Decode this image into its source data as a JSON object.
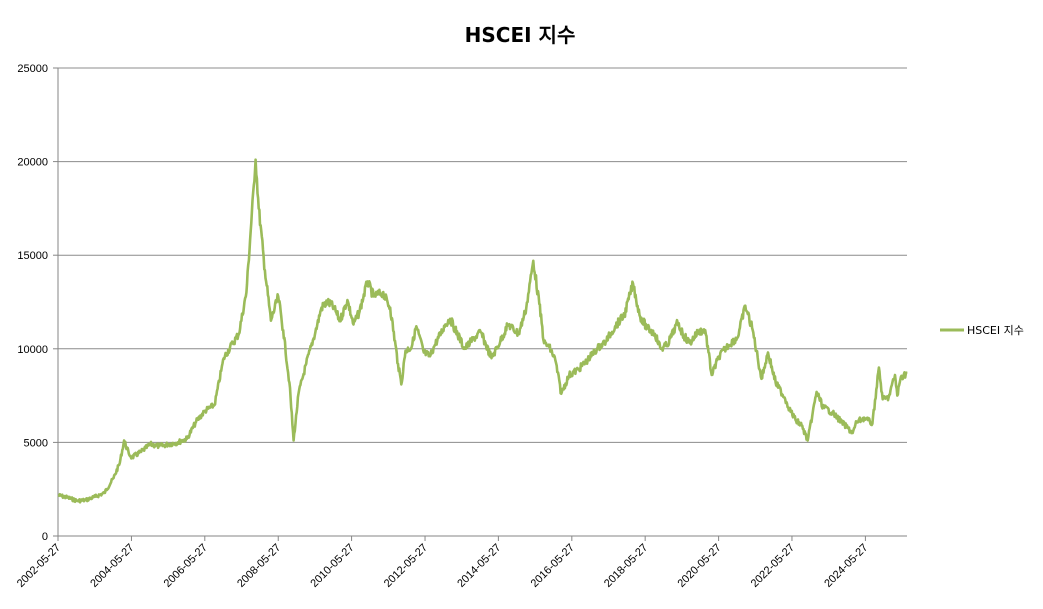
{
  "chart_data": {
    "type": "line",
    "title": "HSCEI 지수",
    "xlabel": "",
    "ylabel": "",
    "ylim": [
      0,
      25000
    ],
    "yticks": [
      0,
      5000,
      10000,
      15000,
      20000,
      25000
    ],
    "xticks": [
      "2002-05-27",
      "2004-05-27",
      "2006-05-27",
      "2008-05-27",
      "2010-05-27",
      "2012-05-27",
      "2014-05-27",
      "2016-05-27",
      "2018-05-27",
      "2020-05-27",
      "2022-05-27",
      "2024-05-27"
    ],
    "xlim": [
      "2002-05-27",
      "2025-07-15"
    ],
    "grid": "horizontal",
    "legend_position": "right",
    "colors": {
      "series": "#9BBB59",
      "grid": "#8C8C8C",
      "axis": "#868686"
    },
    "series": [
      {
        "name": "HSCEI 지수",
        "x": [
          "2002-05-27",
          "2002-09-01",
          "2002-12-01",
          "2003-03-01",
          "2003-06-01",
          "2003-09-01",
          "2003-12-01",
          "2004-02-01",
          "2004-03-15",
          "2004-05-01",
          "2004-06-01",
          "2004-09-01",
          "2004-12-01",
          "2005-03-01",
          "2005-06-01",
          "2005-09-01",
          "2005-12-01",
          "2006-03-01",
          "2006-06-01",
          "2006-09-01",
          "2006-12-01",
          "2007-03-01",
          "2007-05-01",
          "2007-07-15",
          "2007-10-15",
          "2007-11-15",
          "2008-01-15",
          "2008-03-15",
          "2008-05-27",
          "2008-07-15",
          "2008-09-15",
          "2008-10-27",
          "2008-12-15",
          "2009-03-01",
          "2009-06-01",
          "2009-08-01",
          "2009-10-01",
          "2009-12-01",
          "2010-02-01",
          "2010-04-15",
          "2010-06-15",
          "2010-08-15",
          "2010-11-01",
          "2011-01-01",
          "2011-04-01",
          "2011-06-15",
          "2011-09-01",
          "2011-10-04",
          "2011-11-15",
          "2012-01-15",
          "2012-03-01",
          "2012-05-15",
          "2012-07-15",
          "2012-09-01",
          "2012-12-15",
          "2013-02-01",
          "2013-06-25",
          "2013-09-15",
          "2013-12-01",
          "2014-03-20",
          "2014-06-15",
          "2014-09-01",
          "2014-12-15",
          "2015-03-01",
          "2015-05-10",
          "2015-07-08",
          "2015-08-25",
          "2015-10-15",
          "2015-12-15",
          "2016-02-12",
          "2016-05-01",
          "2016-08-01",
          "2016-11-01",
          "2017-02-01",
          "2017-05-01",
          "2017-08-01",
          "2017-11-01",
          "2018-01-26",
          "2018-04-01",
          "2018-06-15",
          "2018-09-01",
          "2018-10-30",
          "2019-01-01",
          "2019-04-15",
          "2019-06-15",
          "2019-08-15",
          "2019-11-01",
          "2020-01-15",
          "2020-03-19",
          "2020-06-01",
          "2020-09-01",
          "2020-12-01",
          "2021-02-17",
          "2021-05-01",
          "2021-07-28",
          "2021-10-01",
          "2021-12-15",
          "2022-03-15",
          "2022-05-01",
          "2022-07-01",
          "2022-09-01",
          "2022-10-31",
          "2023-01-27",
          "2023-04-01",
          "2023-07-01",
          "2023-10-01",
          "2024-01-22",
          "2024-03-01",
          "2024-05-20",
          "2024-08-05",
          "2024-10-08",
          "2024-11-15",
          "2025-01-13",
          "2025-03-18",
          "2025-04-09",
          "2025-05-15",
          "2025-07-15"
        ],
        "values": [
          2180,
          2050,
          1880,
          1920,
          2100,
          2300,
          3100,
          3900,
          5100,
          4400,
          4200,
          4500,
          4900,
          4800,
          4900,
          5000,
          5200,
          6100,
          6700,
          7000,
          9500,
          10300,
          10800,
          13000,
          20100,
          17500,
          14200,
          11500,
          12800,
          11000,
          8200,
          5100,
          7600,
          9200,
          10900,
          12200,
          12500,
          12200,
          11500,
          12600,
          11300,
          12000,
          13600,
          12800,
          13000,
          12200,
          9200,
          8100,
          9900,
          10100,
          11200,
          9800,
          9600,
          10200,
          11300,
          11600,
          10000,
          10500,
          10900,
          9500,
          10400,
          11300,
          10800,
          12200,
          14700,
          12400,
          10300,
          10100,
          9400,
          7600,
          8600,
          8900,
          9400,
          10000,
          10400,
          11200,
          11800,
          13500,
          11800,
          11100,
          10800,
          10000,
          10200,
          11400,
          10700,
          10300,
          10900,
          11000,
          8600,
          9600,
          10200,
          10600,
          12300,
          11000,
          8400,
          9800,
          8200,
          7400,
          6800,
          6200,
          5900,
          5100,
          7700,
          6900,
          6600,
          6100,
          5500,
          6100,
          6300,
          6000,
          9000,
          7300,
          7400,
          8600,
          7500,
          8500,
          8700
        ]
      }
    ]
  }
}
